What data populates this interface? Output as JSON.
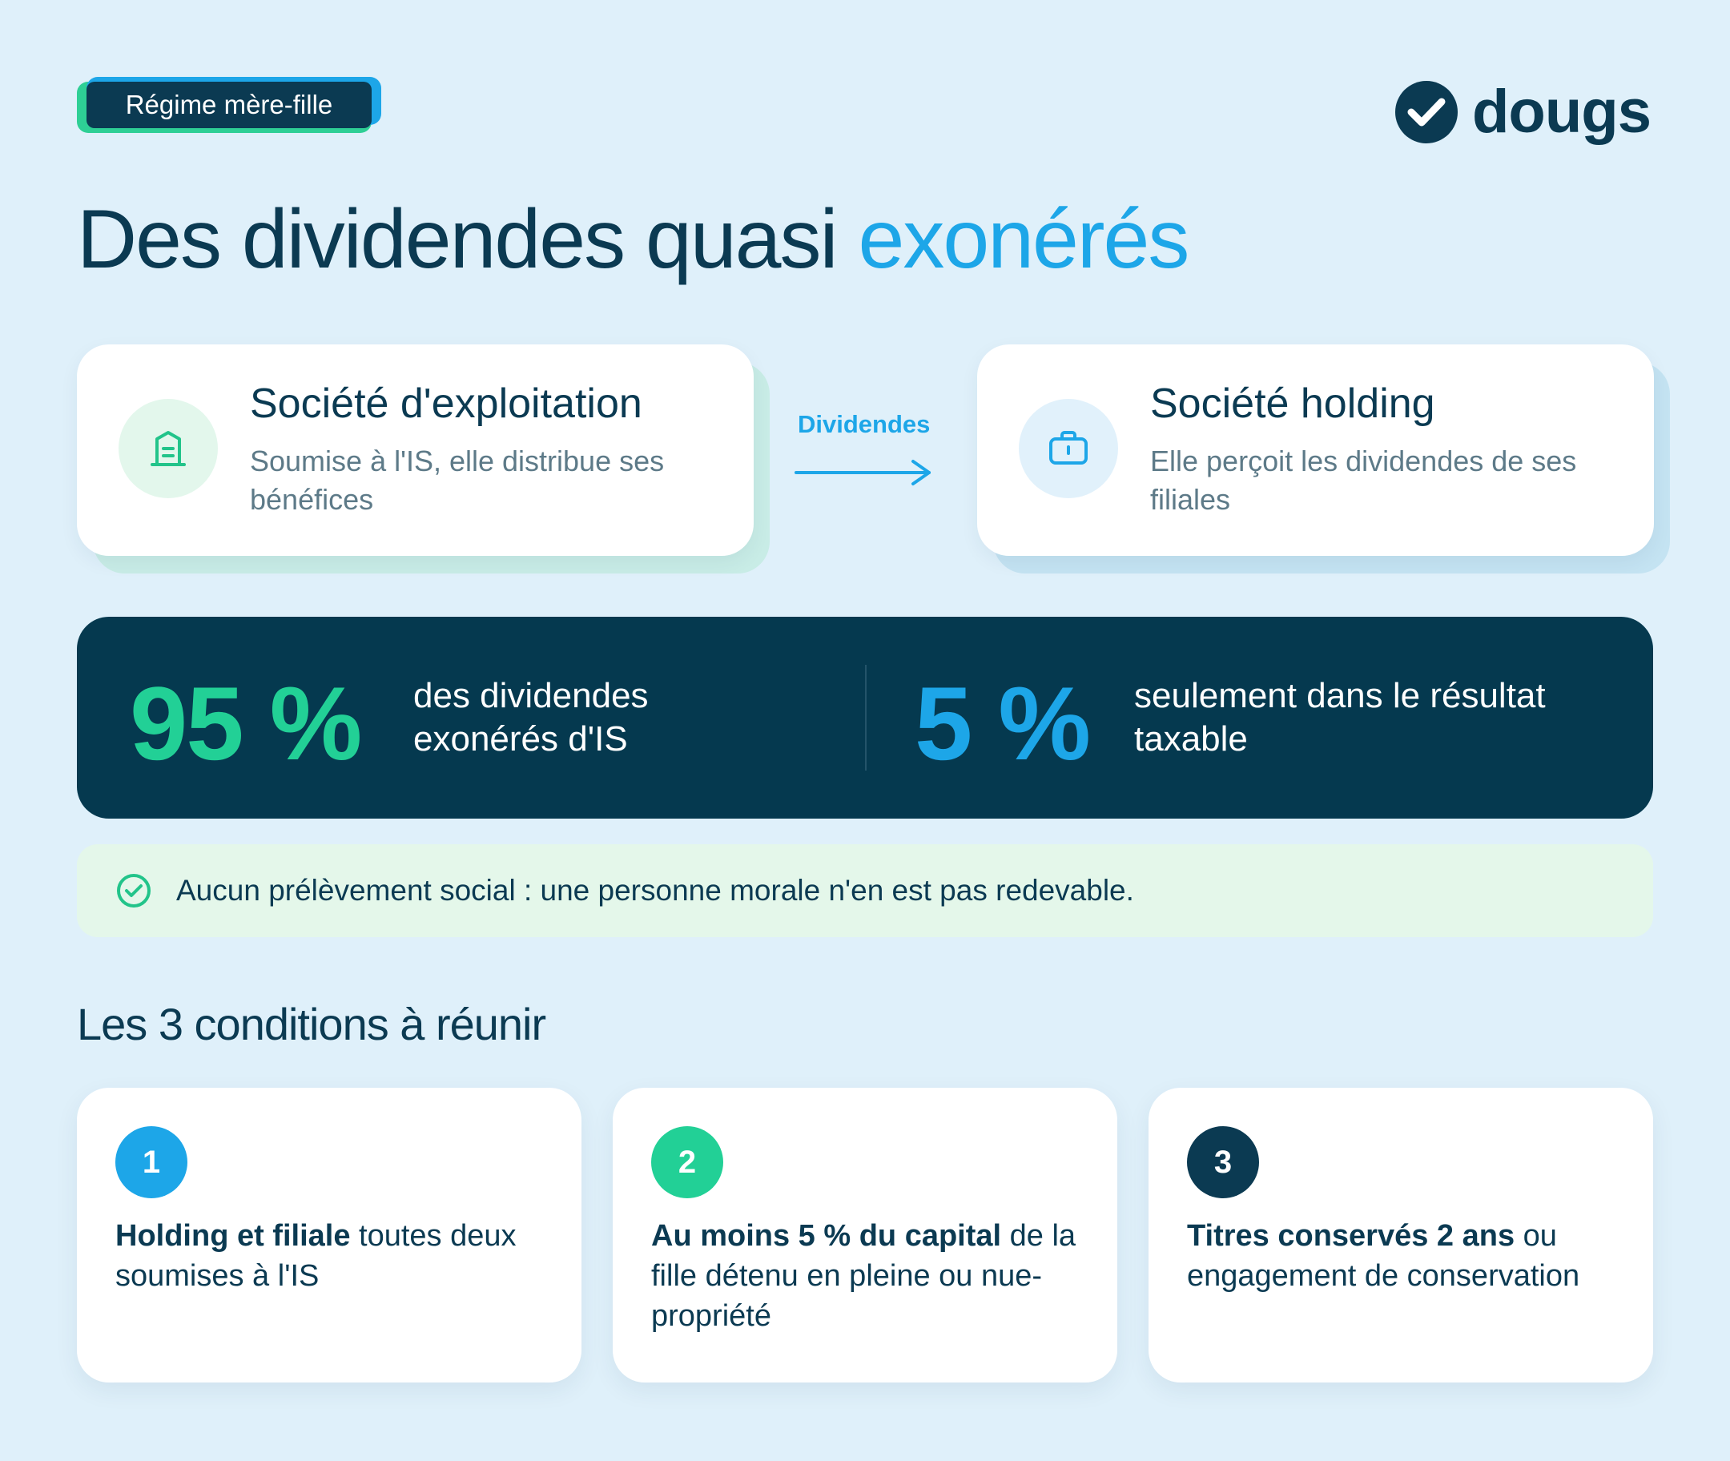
{
  "tag": "Régime mère-fille",
  "logo": {
    "text": "dougs",
    "icon": "check-circle-icon"
  },
  "title": {
    "main": "Des dividendes quasi ",
    "accent": "exonérés"
  },
  "flow": {
    "source": {
      "title": "Société d'exploitation",
      "desc": "Soumise à l'IS, elle distribue ses bénéfices",
      "icon": "building-icon"
    },
    "arrow_label": "Dividendes",
    "target": {
      "title": "Société holding",
      "desc": "Elle perçoit les dividendes de ses filiales",
      "icon": "briefcase-icon"
    }
  },
  "stats": [
    {
      "value": "95 %",
      "text": "des dividendes exonérés d'IS"
    },
    {
      "value": "5 %",
      "text": "seulement dans le résultat taxable"
    }
  ],
  "note": "Aucun prélèvement social : une personne morale n'en est pas redevable.",
  "conditions_title": "Les 3 conditions à réunir",
  "conditions": [
    {
      "num": "1",
      "bold": "Holding et filiale",
      "rest": " toutes deux soumises à l'IS"
    },
    {
      "num": "2",
      "bold": "Au moins 5 % du capital",
      "rest": " de la fille détenu en pleine ou nue-propriété"
    },
    {
      "num": "3",
      "bold": "Titres conservés 2 ans",
      "rest": " ou engagement de conservation"
    }
  ],
  "colors": {
    "navy": "#0b3a52",
    "blue": "#1da6e8",
    "green": "#22d096",
    "bg": "#dff0fa"
  }
}
